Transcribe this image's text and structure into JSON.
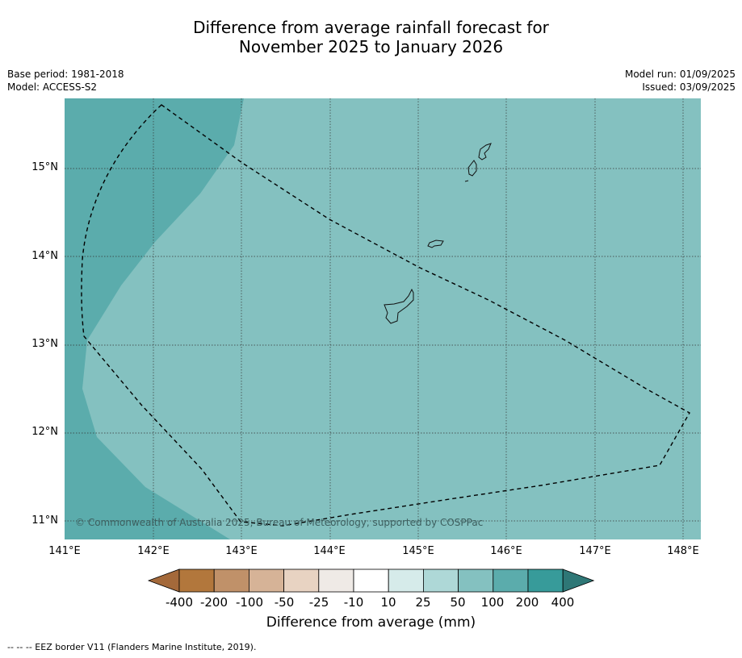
{
  "title_line1": "Difference from average rainfall forecast for",
  "title_line2": "November 2025 to January 2026",
  "meta": {
    "base_period": "Base period: 1981-2018",
    "model": "Model: ACCESS-S2",
    "model_run": "Model run: 01/09/2025",
    "issued": "Issued: 03/09/2025"
  },
  "latitude_labels": [
    "15°N",
    "14°N",
    "13°N",
    "12°N",
    "11°N"
  ],
  "longitude_labels": [
    "141°E",
    "142°E",
    "143°E",
    "144°E",
    "145°E",
    "146°E",
    "147°E",
    "148°E"
  ],
  "copyright": "© Commonwealth of Australia 2025, Bureau of Meteorology, supported by COSPPac",
  "colorbar": {
    "labels": [
      "-400",
      "-200",
      "-100",
      "-50",
      "-25",
      "-10",
      "10",
      "25",
      "50",
      "100",
      "200",
      "400"
    ],
    "colors": [
      "#a4693a",
      "#b2773c",
      "#c09169",
      "#d6b397",
      "#e8d3c2",
      "#efeae6",
      "#ffffff",
      "#d6ebea",
      "#aed8d7",
      "#84c1c0",
      "#5bacac",
      "#379b9a",
      "#2e7776"
    ],
    "title": "Difference from average (mm)"
  },
  "map_colors": {
    "band_50_100": "#84c1c0",
    "band_100_200": "#5bacac"
  },
  "footnote": "--  --  -- EEZ border V11 (Flanders Marine Institute, 2019)."
}
